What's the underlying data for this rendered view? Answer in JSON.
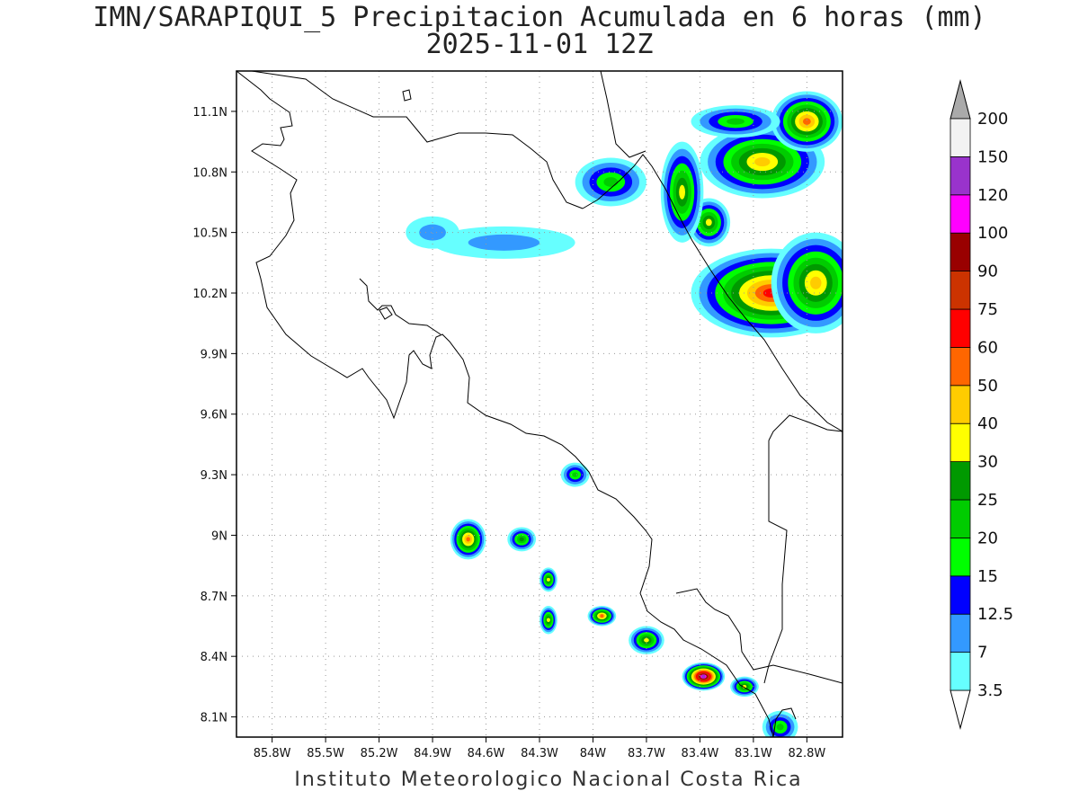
{
  "title": {
    "line1": "IMN/SARAPIQUI_5 Precipitacion Acumulada en 6 horas (mm)",
    "line2": "2025-11-01 12Z"
  },
  "credit": "Instituto Meteorologico Nacional Costa Rica",
  "map": {
    "lon_range": [
      -86.0,
      -82.6
    ],
    "lat_range": [
      8.0,
      11.3
    ],
    "x_ticks": [
      {
        "lon": -85.8,
        "label": "85.8W"
      },
      {
        "lon": -85.5,
        "label": "85.5W"
      },
      {
        "lon": -85.2,
        "label": "85.2W"
      },
      {
        "lon": -84.9,
        "label": "84.9W"
      },
      {
        "lon": -84.6,
        "label": "84.6W"
      },
      {
        "lon": -84.3,
        "label": "84.3W"
      },
      {
        "lon": -84.0,
        "label": "84W"
      },
      {
        "lon": -83.7,
        "label": "83.7W"
      },
      {
        "lon": -83.4,
        "label": "83.4W"
      },
      {
        "lon": -83.1,
        "label": "83.1W"
      },
      {
        "lon": -82.8,
        "label": "82.8W"
      }
    ],
    "y_ticks": [
      {
        "lat": 11.1,
        "label": "11.1N"
      },
      {
        "lat": 10.8,
        "label": "10.8N"
      },
      {
        "lat": 10.5,
        "label": "10.5N"
      },
      {
        "lat": 10.2,
        "label": "10.2N"
      },
      {
        "lat": 9.9,
        "label": "9.9N"
      },
      {
        "lat": 9.6,
        "label": "9.6N"
      },
      {
        "lat": 9.3,
        "label": "9.3N"
      },
      {
        "lat": 9.0,
        "label": "9N"
      },
      {
        "lat": 8.7,
        "label": "8.7N"
      },
      {
        "lat": 8.4,
        "label": "8.4N"
      },
      {
        "lat": 8.1,
        "label": "8.1N"
      }
    ],
    "grid": true
  },
  "colorbar": {
    "levels": [
      {
        "label": "3.5",
        "color": "#66ffff"
      },
      {
        "label": "7",
        "color": "#3399ff"
      },
      {
        "label": "12.5",
        "color": "#0000ff"
      },
      {
        "label": "15",
        "color": "#00ff00"
      },
      {
        "label": "20",
        "color": "#00cc00"
      },
      {
        "label": "25",
        "color": "#009900"
      },
      {
        "label": "30",
        "color": "#ffff00"
      },
      {
        "label": "40",
        "color": "#ffcc00"
      },
      {
        "label": "50",
        "color": "#ff6600"
      },
      {
        "label": "60",
        "color": "#ff0000"
      },
      {
        "label": "75",
        "color": "#cc3300"
      },
      {
        "label": "90",
        "color": "#990000"
      },
      {
        "label": "100",
        "color": "#ff00ff"
      },
      {
        "label": "120",
        "color": "#9933cc"
      },
      {
        "label": "150",
        "color": "#f2f2f2"
      },
      {
        "label": "200",
        "color": "#aaaaaa"
      }
    ],
    "top_color": "#aaaaaa",
    "bottom_color": "#ffffff"
  },
  "precip_cells": [
    {
      "lon": -83.0,
      "lat": 10.2,
      "rx": 0.45,
      "ry": 0.22,
      "peak": 9
    },
    {
      "lon": -82.75,
      "lat": 10.25,
      "rx": 0.25,
      "ry": 0.25,
      "peak": 7
    },
    {
      "lon": -83.35,
      "lat": 10.55,
      "rx": 0.12,
      "ry": 0.12,
      "peak": 6
    },
    {
      "lon": -83.5,
      "lat": 10.7,
      "rx": 0.12,
      "ry": 0.25,
      "peak": 6
    },
    {
      "lon": -83.05,
      "lat": 10.85,
      "rx": 0.35,
      "ry": 0.18,
      "peak": 7
    },
    {
      "lon": -82.8,
      "lat": 11.05,
      "rx": 0.2,
      "ry": 0.15,
      "peak": 8
    },
    {
      "lon": -83.2,
      "lat": 11.05,
      "rx": 0.25,
      "ry": 0.08,
      "peak": 4
    },
    {
      "lon": -83.9,
      "lat": 10.75,
      "rx": 0.2,
      "ry": 0.12,
      "peak": 4
    },
    {
      "lon": -84.5,
      "lat": 10.45,
      "rx": 0.4,
      "ry": 0.08,
      "peak": 1
    },
    {
      "lon": -84.9,
      "lat": 10.5,
      "rx": 0.15,
      "ry": 0.08,
      "peak": 1
    },
    {
      "lon": -84.1,
      "lat": 9.3,
      "rx": 0.08,
      "ry": 0.06,
      "peak": 4
    },
    {
      "lon": -84.7,
      "lat": 8.98,
      "rx": 0.1,
      "ry": 0.1,
      "peak": 8
    },
    {
      "lon": -84.4,
      "lat": 8.98,
      "rx": 0.08,
      "ry": 0.06,
      "peak": 5
    },
    {
      "lon": -84.25,
      "lat": 8.78,
      "rx": 0.05,
      "ry": 0.06,
      "peak": 6
    },
    {
      "lon": -84.25,
      "lat": 8.58,
      "rx": 0.05,
      "ry": 0.07,
      "peak": 6
    },
    {
      "lon": -83.95,
      "lat": 8.6,
      "rx": 0.08,
      "ry": 0.05,
      "peak": 8
    },
    {
      "lon": -83.7,
      "lat": 8.48,
      "rx": 0.1,
      "ry": 0.07,
      "peak": 6
    },
    {
      "lon": -83.38,
      "lat": 8.3,
      "rx": 0.12,
      "ry": 0.07,
      "peak": 13
    },
    {
      "lon": -83.15,
      "lat": 8.25,
      "rx": 0.08,
      "ry": 0.05,
      "peak": 6
    },
    {
      "lon": -82.95,
      "lat": 8.05,
      "rx": 0.1,
      "ry": 0.08,
      "peak": 4
    }
  ]
}
